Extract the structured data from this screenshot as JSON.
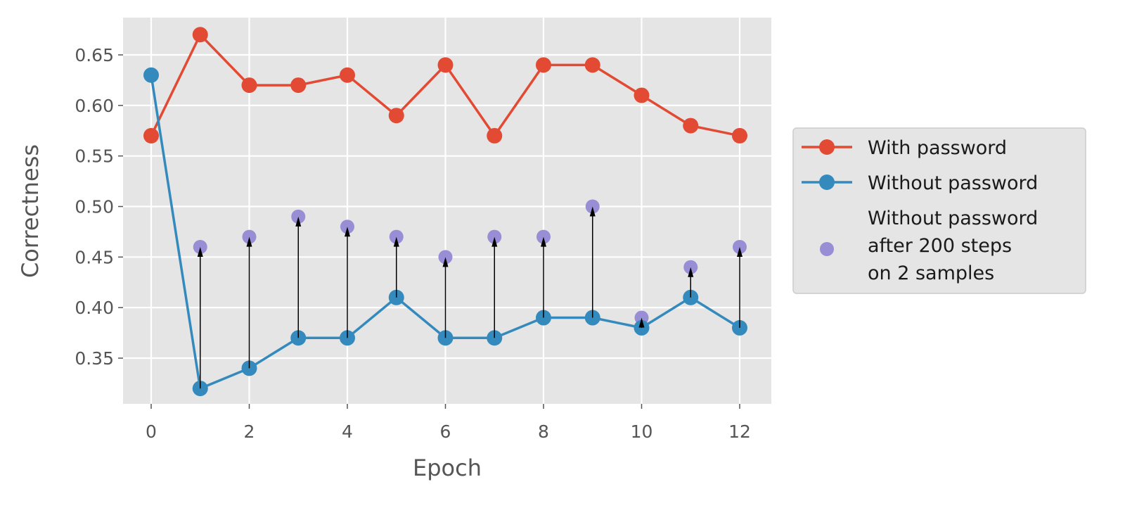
{
  "chart_data": {
    "type": "line",
    "title": "",
    "xlabel": "Epoch",
    "ylabel": "Correctness",
    "x": [
      0,
      1,
      2,
      3,
      4,
      5,
      6,
      7,
      8,
      9,
      10,
      11,
      12
    ],
    "xticks": [
      "0",
      "2",
      "4",
      "6",
      "8",
      "10",
      "12"
    ],
    "yticks": [
      "0.35",
      "0.40",
      "0.45",
      "0.50",
      "0.55",
      "0.60",
      "0.65"
    ],
    "xlim": [
      -0.55,
      12.65
    ],
    "ylim": [
      0.305,
      0.688
    ],
    "grid": true,
    "legend_position": "right, outside plot",
    "series": [
      {
        "name": "With password",
        "kind": "line+marker",
        "color": "#E24A33",
        "values": [
          0.57,
          0.67,
          0.62,
          0.62,
          0.63,
          0.59,
          0.64,
          0.57,
          0.64,
          0.64,
          0.61,
          0.58,
          0.57
        ]
      },
      {
        "name": "Without password",
        "kind": "line+marker",
        "color": "#348ABD",
        "values": [
          0.63,
          0.32,
          0.34,
          0.37,
          0.37,
          0.41,
          0.37,
          0.37,
          0.39,
          0.39,
          0.38,
          0.41,
          0.38
        ]
      },
      {
        "name": "Without password\nafter 200 steps\non 2 samples",
        "kind": "scatter",
        "color": "#988ED5",
        "x": [
          1,
          2,
          3,
          4,
          5,
          6,
          7,
          8,
          9,
          10,
          11,
          12
        ],
        "values": [
          0.46,
          0.47,
          0.49,
          0.48,
          0.47,
          0.45,
          0.47,
          0.47,
          0.5,
          0.39,
          0.44,
          0.46
        ]
      }
    ],
    "annotations": "Black arrows from each 'Without password' point (epochs 1-12) up to the corresponding post-200-step scatter point"
  },
  "legend": {
    "items": [
      {
        "label_lines": [
          "With password"
        ]
      },
      {
        "label_lines": [
          "Without password"
        ]
      },
      {
        "label_lines": [
          "Without password",
          "after 200 steps",
          "on 2 samples"
        ]
      }
    ]
  },
  "colors": {
    "plot_bg": "#E5E5E5",
    "grid": "#FFFFFF",
    "legend_bg": "#E5E5E5",
    "legend_border": "#CCCCCC",
    "text": "#555555"
  }
}
